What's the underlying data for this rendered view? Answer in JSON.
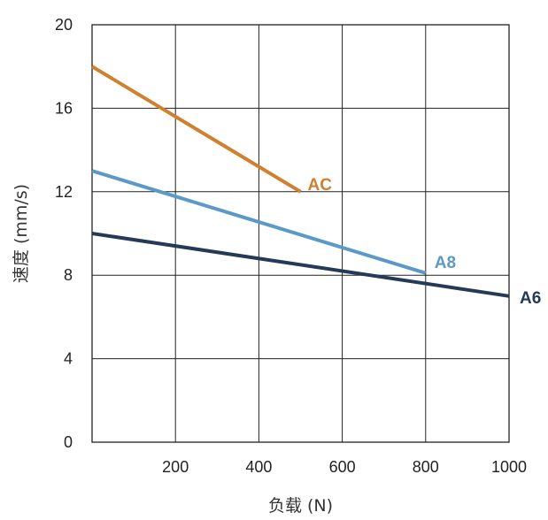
{
  "chart_data": {
    "type": "line",
    "xlabel": "负载 (N)",
    "ylabel": "速度 (mm/s)",
    "xlim": [
      0,
      1000
    ],
    "ylim": [
      0,
      20
    ],
    "x_ticks": [
      "200",
      "400",
      "600",
      "800",
      "1000"
    ],
    "x_tick_values": [
      200,
      400,
      600,
      800,
      1000
    ],
    "y_ticks": [
      "0",
      "4",
      "8",
      "12",
      "16",
      "20"
    ],
    "y_tick_values": [
      0,
      4,
      8,
      12,
      16,
      20
    ],
    "grid": true,
    "series": [
      {
        "name": "AC",
        "color": "#D0802F",
        "x": [
          0,
          500
        ],
        "y": [
          18,
          12
        ]
      },
      {
        "name": "A8",
        "color": "#5B9AC6",
        "x": [
          0,
          800
        ],
        "y": [
          13,
          8.1
        ]
      },
      {
        "name": "A6",
        "color": "#243A56",
        "x": [
          0,
          1000
        ],
        "y": [
          10,
          7
        ]
      }
    ]
  }
}
